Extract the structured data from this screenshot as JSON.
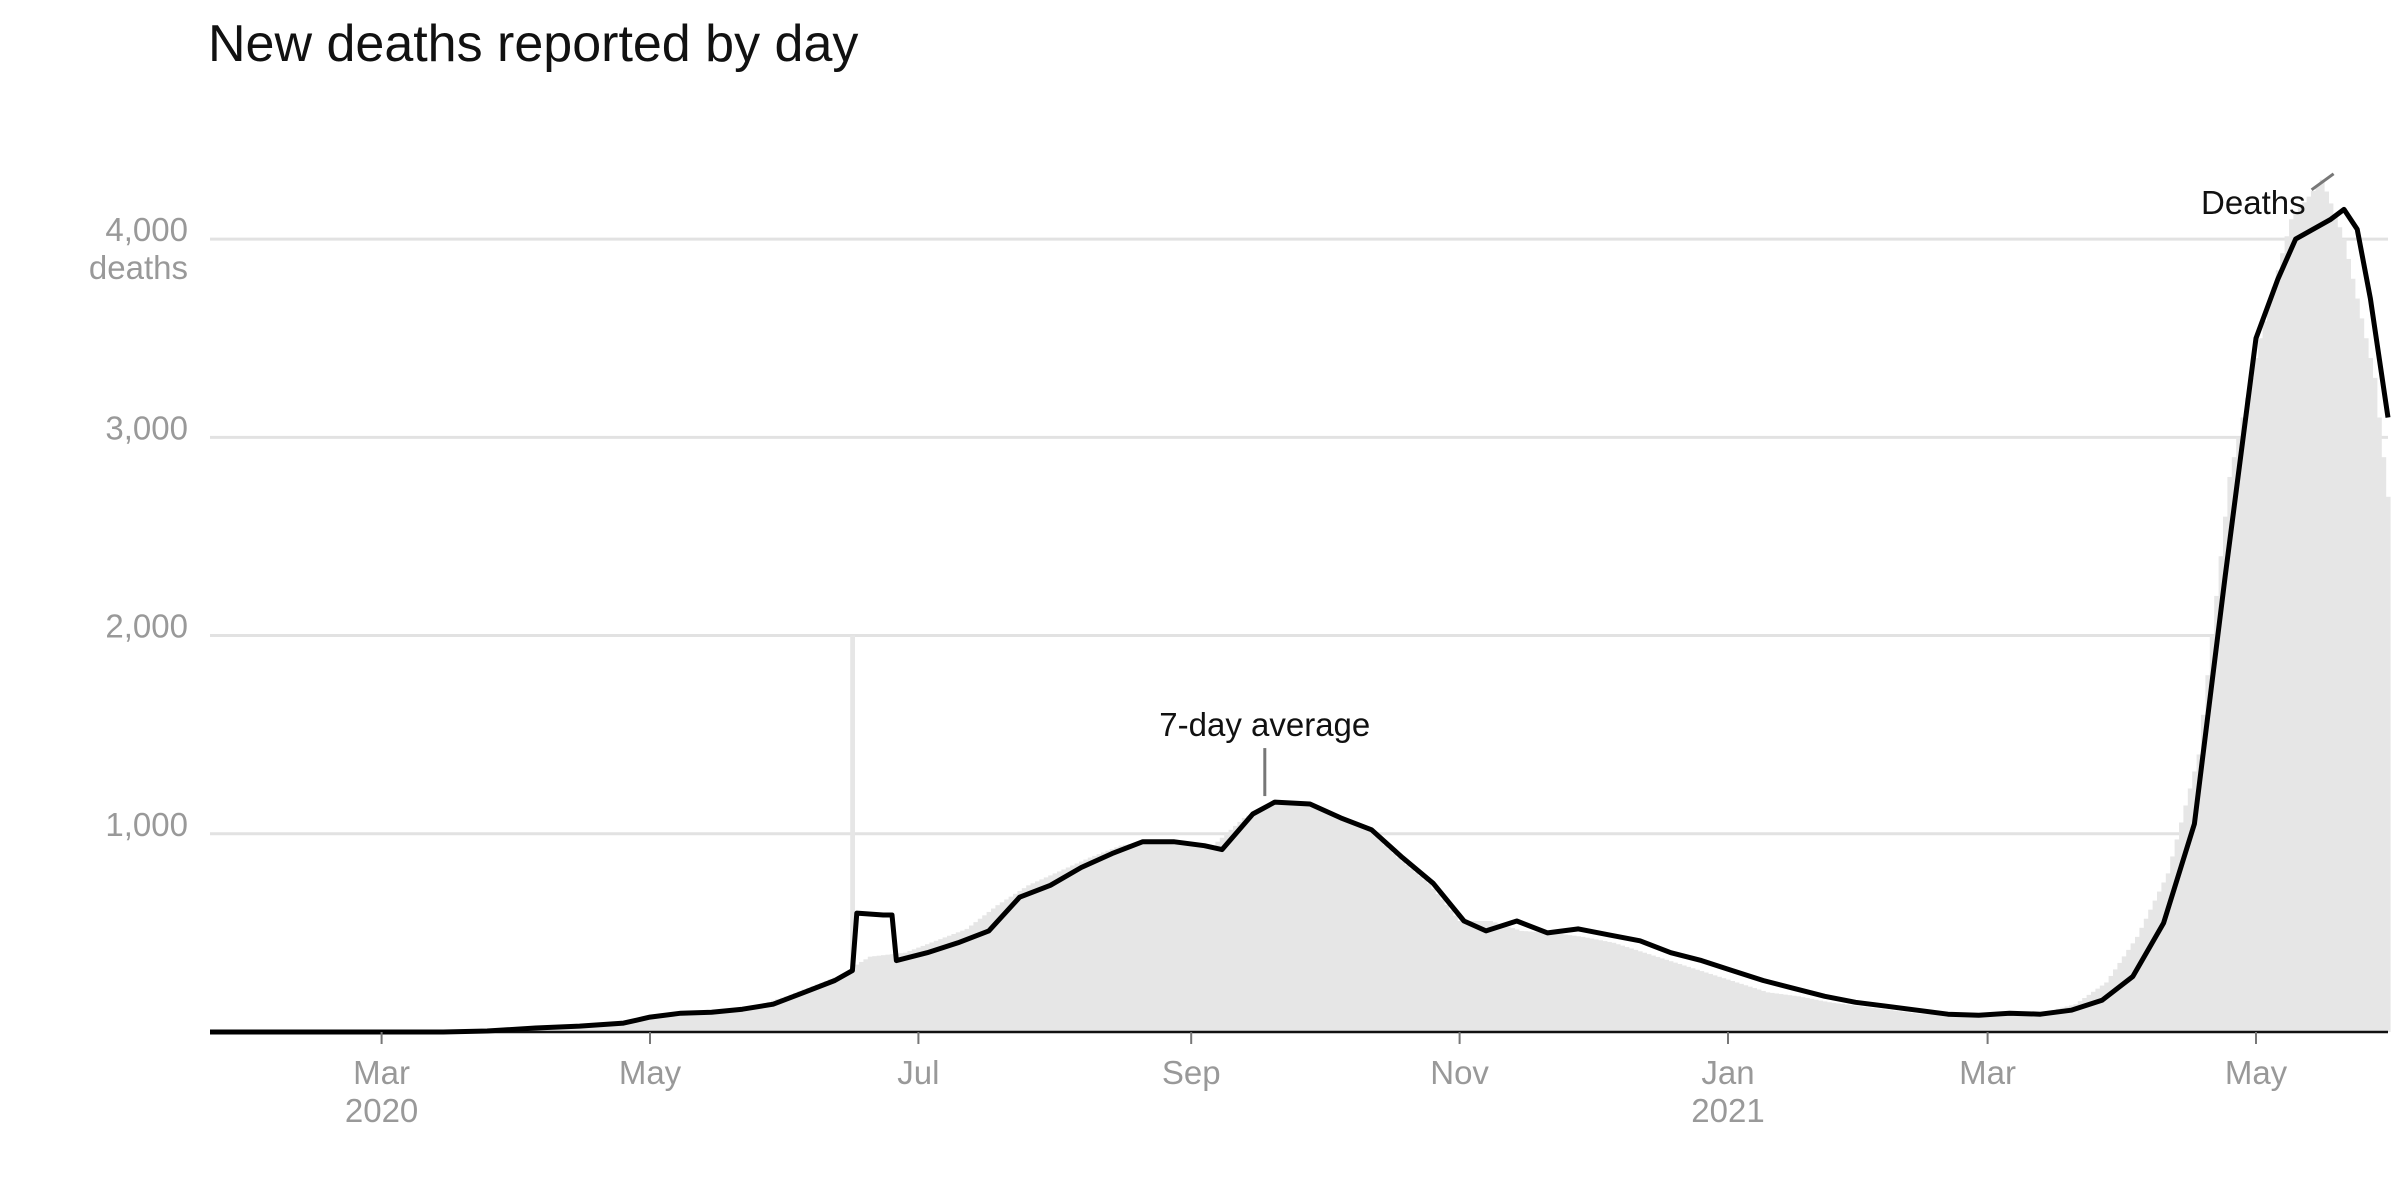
{
  "chart_data": {
    "type": "bar",
    "title": "New deaths reported by day",
    "xlabel": "",
    "ylabel": "",
    "x_range": [
      "2020-01-22",
      "2021-05-31"
    ],
    "ylim": [
      0,
      4500
    ],
    "grid": "horizontal",
    "legend": "none",
    "y_ticks": [
      {
        "value": 1000,
        "label": "1,000"
      },
      {
        "value": 2000,
        "label": "2,000"
      },
      {
        "value": 3000,
        "label": "3,000"
      },
      {
        "value": 4000,
        "label": "4,000",
        "unit": "deaths"
      }
    ],
    "x_ticks": [
      {
        "date": "2020-03-01",
        "label": "Mar",
        "year": "2020"
      },
      {
        "date": "2020-05-01",
        "label": "May"
      },
      {
        "date": "2020-07-01",
        "label": "Jul"
      },
      {
        "date": "2020-09-01",
        "label": "Sep"
      },
      {
        "date": "2020-11-01",
        "label": "Nov"
      },
      {
        "date": "2021-01-01",
        "label": "Jan",
        "year": "2021"
      },
      {
        "date": "2021-03-01",
        "label": "Mar"
      },
      {
        "date": "2021-05-01",
        "label": "May"
      }
    ],
    "series": [
      {
        "type": "bar",
        "color": "#e6e6e6",
        "points": [
          [
            "2020-01-22",
            0
          ],
          [
            "2020-02-15",
            0
          ],
          [
            "2020-03-10",
            0
          ],
          [
            "2020-03-25",
            3
          ],
          [
            "2020-04-01",
            10
          ],
          [
            "2020-04-10",
            25
          ],
          [
            "2020-04-20",
            35
          ],
          [
            "2020-04-28",
            55
          ],
          [
            "2020-05-05",
            90
          ],
          [
            "2020-05-15",
            105
          ],
          [
            "2020-05-25",
            130
          ],
          [
            "2020-06-01",
            180
          ],
          [
            "2020-06-08",
            240
          ],
          [
            "2020-06-15",
            300
          ],
          [
            "2020-06-16",
            2000
          ],
          [
            "2020-06-17",
            340
          ],
          [
            "2020-06-20",
            380
          ],
          [
            "2020-06-28",
            400
          ],
          [
            "2020-07-05",
            460
          ],
          [
            "2020-07-12",
            520
          ],
          [
            "2020-07-19",
            640
          ],
          [
            "2020-07-26",
            740
          ],
          [
            "2020-08-02",
            810
          ],
          [
            "2020-08-09",
            880
          ],
          [
            "2020-08-16",
            940
          ],
          [
            "2020-08-23",
            970
          ],
          [
            "2020-08-30",
            960
          ],
          [
            "2020-09-06",
            940
          ],
          [
            "2020-09-13",
            1080
          ],
          [
            "2020-09-20",
            1160
          ],
          [
            "2020-09-27",
            1150
          ],
          [
            "2020-10-04",
            1100
          ],
          [
            "2020-10-11",
            1030
          ],
          [
            "2020-10-18",
            880
          ],
          [
            "2020-10-25",
            750
          ],
          [
            "2020-11-01",
            560
          ],
          [
            "2020-11-08",
            560
          ],
          [
            "2020-11-15",
            510
          ],
          [
            "2020-11-22",
            500
          ],
          [
            "2020-11-29",
            480
          ],
          [
            "2020-12-06",
            450
          ],
          [
            "2020-12-13",
            400
          ],
          [
            "2020-12-20",
            350
          ],
          [
            "2020-12-27",
            300
          ],
          [
            "2021-01-03",
            250
          ],
          [
            "2021-01-10",
            200
          ],
          [
            "2021-01-17",
            180
          ],
          [
            "2021-01-24",
            150
          ],
          [
            "2021-01-31",
            130
          ],
          [
            "2021-02-07",
            110
          ],
          [
            "2021-02-14",
            90
          ],
          [
            "2021-02-21",
            85
          ],
          [
            "2021-02-28",
            90
          ],
          [
            "2021-03-07",
            85
          ],
          [
            "2021-03-14",
            100
          ],
          [
            "2021-03-21",
            140
          ],
          [
            "2021-03-28",
            250
          ],
          [
            "2021-04-04",
            480
          ],
          [
            "2021-04-11",
            800
          ],
          [
            "2021-04-18",
            1400
          ],
          [
            "2021-04-25",
            2800
          ],
          [
            "2021-05-02",
            3500
          ],
          [
            "2021-05-09",
            4100
          ],
          [
            "2021-05-16",
            4300
          ],
          [
            "2021-05-21",
            4000
          ],
          [
            "2021-05-25",
            3600
          ],
          [
            "2021-05-28",
            3300
          ],
          [
            "2021-05-31",
            2700
          ]
        ]
      },
      {
        "type": "line",
        "color": "#000000",
        "points": [
          [
            "2020-01-22",
            0
          ],
          [
            "2020-03-15",
            0
          ],
          [
            "2020-03-25",
            5
          ],
          [
            "2020-04-05",
            20
          ],
          [
            "2020-04-15",
            30
          ],
          [
            "2020-04-25",
            45
          ],
          [
            "2020-05-01",
            75
          ],
          [
            "2020-05-08",
            95
          ],
          [
            "2020-05-15",
            100
          ],
          [
            "2020-05-22",
            115
          ],
          [
            "2020-05-29",
            140
          ],
          [
            "2020-06-05",
            200
          ],
          [
            "2020-06-12",
            260
          ],
          [
            "2020-06-16",
            310
          ],
          [
            "2020-06-17",
            600
          ],
          [
            "2020-06-23",
            590
          ],
          [
            "2020-06-25",
            590
          ],
          [
            "2020-06-26",
            360
          ],
          [
            "2020-07-03",
            400
          ],
          [
            "2020-07-10",
            450
          ],
          [
            "2020-07-17",
            510
          ],
          [
            "2020-07-24",
            680
          ],
          [
            "2020-07-31",
            740
          ],
          [
            "2020-08-07",
            830
          ],
          [
            "2020-08-14",
            900
          ],
          [
            "2020-08-21",
            960
          ],
          [
            "2020-08-28",
            960
          ],
          [
            "2020-09-04",
            940
          ],
          [
            "2020-09-08",
            920
          ],
          [
            "2020-09-15",
            1100
          ],
          [
            "2020-09-20",
            1160
          ],
          [
            "2020-09-28",
            1150
          ],
          [
            "2020-10-05",
            1080
          ],
          [
            "2020-10-12",
            1020
          ],
          [
            "2020-10-19",
            880
          ],
          [
            "2020-10-26",
            750
          ],
          [
            "2020-11-02",
            560
          ],
          [
            "2020-11-07",
            510
          ],
          [
            "2020-11-14",
            560
          ],
          [
            "2020-11-21",
            500
          ],
          [
            "2020-11-28",
            520
          ],
          [
            "2020-12-05",
            490
          ],
          [
            "2020-12-12",
            460
          ],
          [
            "2020-12-19",
            400
          ],
          [
            "2020-12-26",
            360
          ],
          [
            "2021-01-02",
            310
          ],
          [
            "2021-01-09",
            260
          ],
          [
            "2021-01-16",
            220
          ],
          [
            "2021-01-23",
            180
          ],
          [
            "2021-01-30",
            150
          ],
          [
            "2021-02-06",
            130
          ],
          [
            "2021-02-13",
            110
          ],
          [
            "2021-02-20",
            90
          ],
          [
            "2021-02-27",
            85
          ],
          [
            "2021-03-06",
            95
          ],
          [
            "2021-03-13",
            90
          ],
          [
            "2021-03-20",
            110
          ],
          [
            "2021-03-27",
            160
          ],
          [
            "2021-04-03",
            280
          ],
          [
            "2021-04-10",
            550
          ],
          [
            "2021-04-17",
            1050
          ],
          [
            "2021-04-24",
            2300
          ],
          [
            "2021-05-01",
            3500
          ],
          [
            "2021-05-06",
            3800
          ],
          [
            "2021-05-10",
            4000
          ],
          [
            "2021-05-14",
            4050
          ],
          [
            "2021-05-18",
            4100
          ],
          [
            "2021-05-21",
            4150
          ],
          [
            "2021-05-24",
            4050
          ],
          [
            "2021-05-27",
            3700
          ],
          [
            "2021-05-31",
            3100
          ]
        ]
      }
    ],
    "annotations": [
      {
        "text": "7-day average",
        "date": "2020-09-20",
        "value": 1160
      },
      {
        "text": "Deaths",
        "date": "2021-05-20",
        "value": 4400
      }
    ]
  }
}
